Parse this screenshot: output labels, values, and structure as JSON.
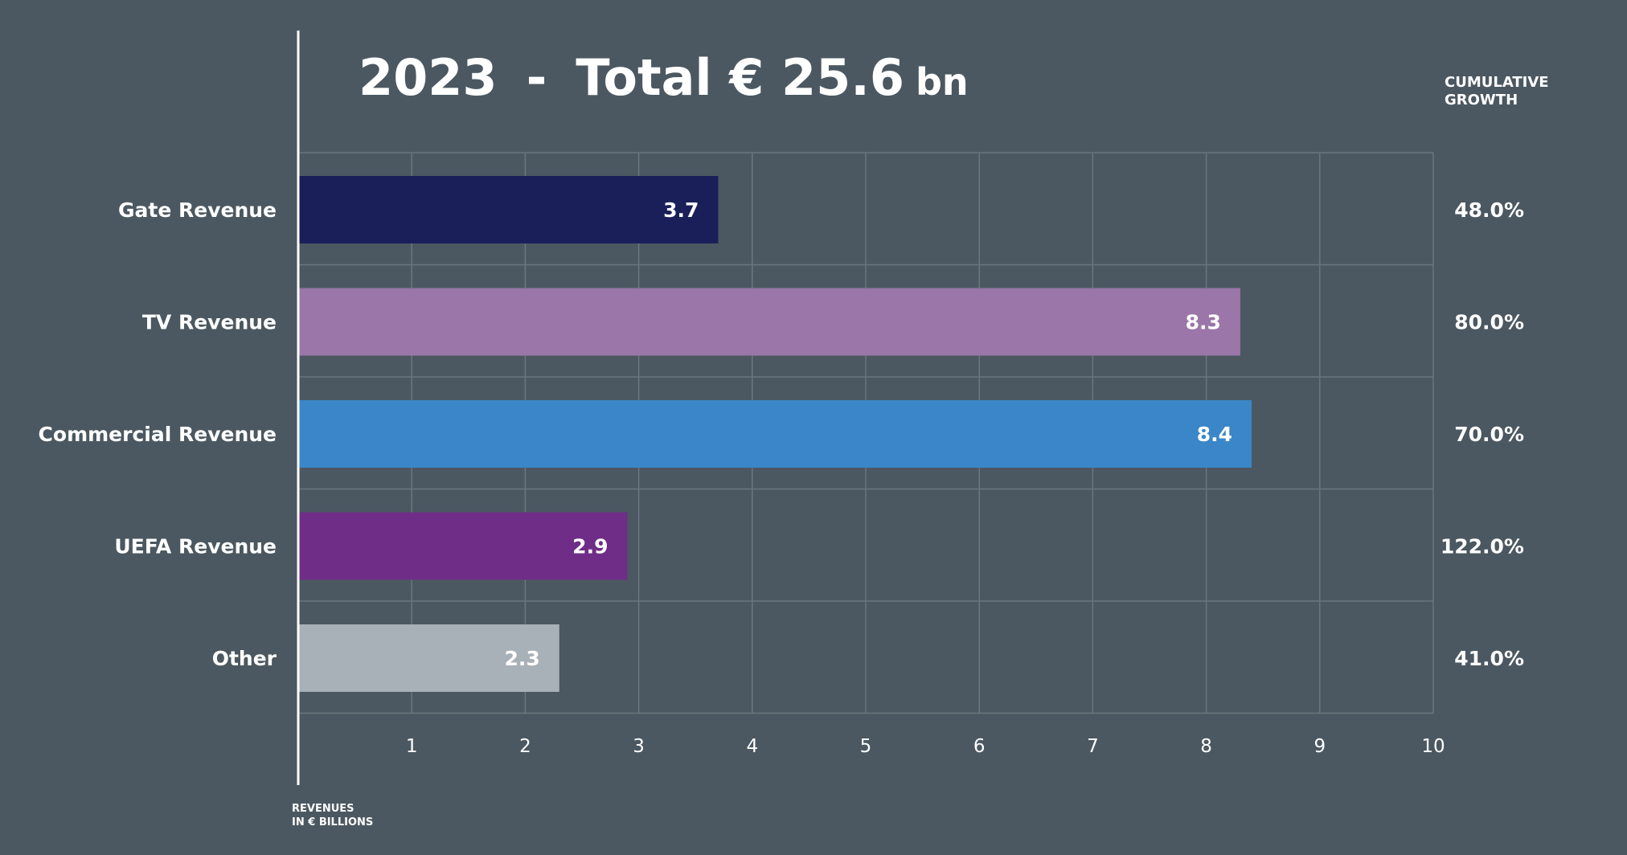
{
  "header": {
    "year": "2023",
    "separator": "-",
    "total_prefix": "Total",
    "total_amount": "€ 25.6",
    "total_unit": "bn",
    "cumulative_line1": "CUMULATIVE",
    "cumulative_line2": "GROWTH"
  },
  "footnote": {
    "line1": "REVENUES",
    "line2": "IN € BILLIONS"
  },
  "chart_data": {
    "type": "bar",
    "orientation": "horizontal",
    "title": "2023 - Total € 25.6 bn",
    "categories": [
      "Gate Revenue",
      "TV Revenue",
      "Commercial Revenue",
      "UEFA Revenue",
      "Other"
    ],
    "values": [
      3.7,
      8.3,
      8.4,
      2.9,
      2.3
    ],
    "value_labels": [
      "3.7",
      "8.3",
      "8.4",
      "2.9",
      "2.3"
    ],
    "colors": [
      "#1a1f5a",
      "#9b76a8",
      "#3a86c8",
      "#6f2d87",
      "#a8b0b8"
    ],
    "cumulative_growth": [
      "48.0%",
      "80.0%",
      "70.0%",
      "122.0%",
      "41.0%"
    ],
    "xlim": [
      0,
      10
    ],
    "x_ticks": [
      "1",
      "2",
      "3",
      "4",
      "5",
      "6",
      "7",
      "8",
      "9",
      "10"
    ],
    "xlabel": "REVENUES IN € BILLIONS",
    "grid": true,
    "gridline_color": "#6b767e"
  }
}
